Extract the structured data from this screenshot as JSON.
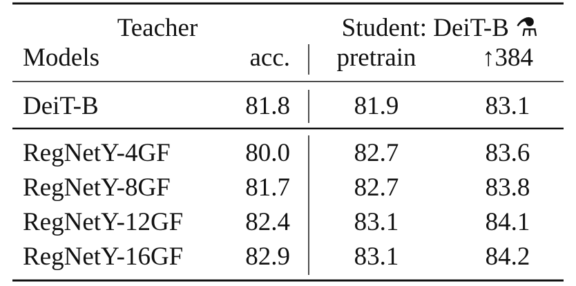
{
  "header": {
    "group_row": [
      "Teacher",
      "Student: DeiT-B ⚗"
    ],
    "columns": [
      "Models",
      "acc.",
      "pretrain",
      "↑384"
    ]
  },
  "table": {
    "rows": [
      [
        "DeiT-B",
        "81.8",
        "81.9",
        "83.1"
      ],
      [
        "RegNetY-4GF",
        "80.0",
        "82.7",
        "83.6"
      ],
      [
        "RegNetY-8GF",
        "81.7",
        "82.7",
        "83.8"
      ],
      [
        "RegNetY-12GF",
        "82.4",
        "83.1",
        "84.1"
      ],
      [
        "RegNetY-16GF",
        "82.9",
        "83.1",
        "84.2"
      ]
    ]
  }
}
